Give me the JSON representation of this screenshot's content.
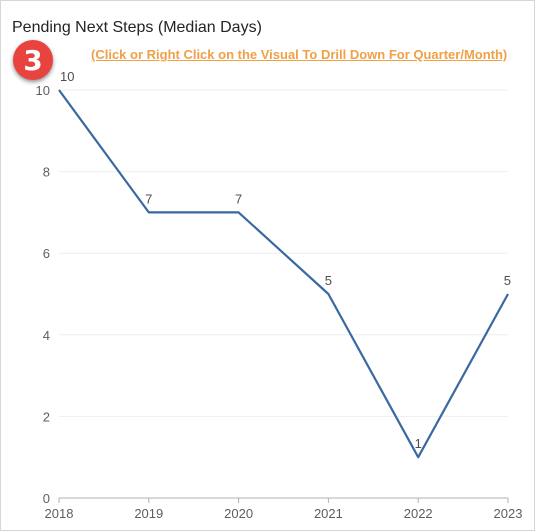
{
  "header": {
    "title": "Pending Next Steps (Median Days)",
    "badge": "3",
    "drill_link": "(Click or Right Click on the Visual To Drill Down For Quarter/Month)"
  },
  "colors": {
    "line": "#3a68a0",
    "badge": "#e8433f",
    "link": "#f0a046",
    "grid": "#eeeeee",
    "axis_text": "#605e5c"
  },
  "chart_data": {
    "type": "line",
    "title": "Pending Next Steps (Median Days)",
    "categories": [
      "2018",
      "2019",
      "2020",
      "2021",
      "2022",
      "2023"
    ],
    "series": [
      {
        "values": [
          10,
          7,
          7,
          5,
          1,
          5
        ]
      }
    ],
    "y_ticks": [
      0,
      2,
      4,
      6,
      8,
      10
    ],
    "ylim": [
      0,
      10
    ],
    "xlabel": "",
    "ylabel": "",
    "grid": true,
    "data_labels": true
  }
}
